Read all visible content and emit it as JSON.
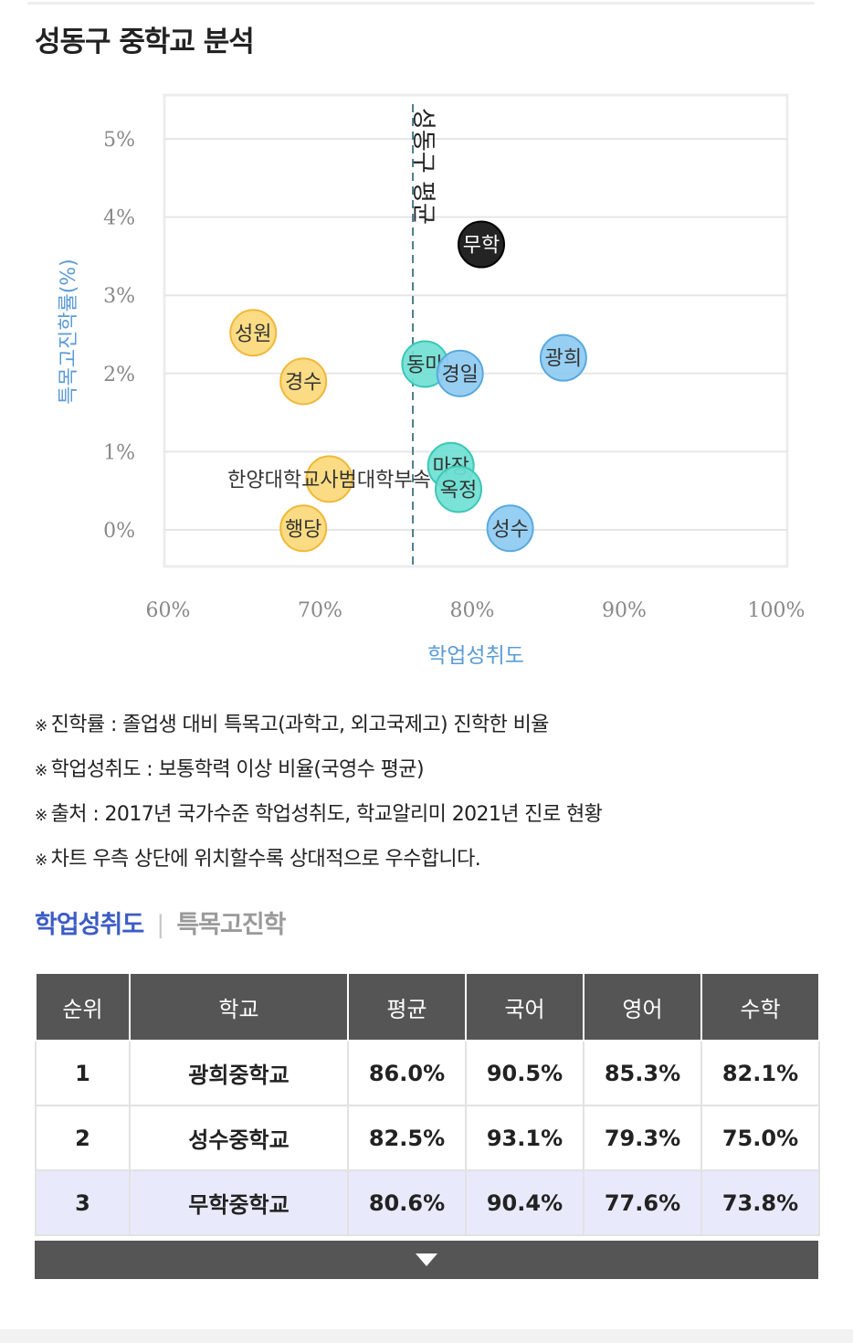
{
  "page_title": "성동구 중학교 분석",
  "chart_data": {
    "type": "scatter",
    "xlabel": "학업성취도",
    "ylabel": "특목고진학률(%)",
    "x_ticks": [
      "60%",
      "70%",
      "80%",
      "90%",
      "100%"
    ],
    "y_ticks": [
      "0%",
      "1%",
      "2%",
      "3%",
      "4%",
      "5%"
    ],
    "xlim": [
      60,
      100
    ],
    "ylim": [
      -0.5,
      5.5
    ],
    "grid": true,
    "reference_line": {
      "x": 76.1,
      "label": "성동구 평균"
    },
    "colors": {
      "yellow": "#fbd97a",
      "teal": "#6fdfd2",
      "blue": "#8ecbf2",
      "black": "#111111",
      "axis_label": "#5b9bd5"
    },
    "points": [
      {
        "label": "무학",
        "x": 80.6,
        "y": 3.65,
        "group": "black"
      },
      {
        "label": "성원",
        "x": 65.6,
        "y": 2.52,
        "group": "yellow"
      },
      {
        "label": "경수",
        "x": 68.9,
        "y": 1.9,
        "group": "yellow"
      },
      {
        "label": "광희",
        "x": 86.0,
        "y": 2.2,
        "group": "blue"
      },
      {
        "label": "동마",
        "x": 76.9,
        "y": 2.12,
        "group": "teal"
      },
      {
        "label": "경일",
        "x": 79.2,
        "y": 2.0,
        "group": "blue"
      },
      {
        "label": "마장",
        "x": 78.6,
        "y": 0.82,
        "group": "teal"
      },
      {
        "label": "옥정",
        "x": 79.1,
        "y": 0.52,
        "group": "teal"
      },
      {
        "label": "한양대학교사범대학부속",
        "x": 70.6,
        "y": 0.65,
        "group": "yellow"
      },
      {
        "label": "행당",
        "x": 68.9,
        "y": 0.02,
        "group": "yellow"
      },
      {
        "label": "성수",
        "x": 82.5,
        "y": 0.02,
        "group": "blue"
      }
    ]
  },
  "notes": [
    {
      "mark": "※",
      "text": "진학률 : 졸업생 대비 특목고(과학고, 외고국제고) 진학한 비율"
    },
    {
      "mark": "※",
      "text": "학업성취도 : 보통학력 이상 비율(국영수 평균)"
    },
    {
      "mark": "※",
      "text": "출처 : 2017년 국가수준 학업성취도, 학교알리미 2021년 진로 현황"
    },
    {
      "mark": "※",
      "text": "차트 우측 상단에 위치할수록 상대적으로 우수합니다."
    }
  ],
  "tabs": {
    "active": "학업성취도",
    "separator": "|",
    "inactive": "특목고진학"
  },
  "table": {
    "headers": [
      "순위",
      "학교",
      "평균",
      "국어",
      "영어",
      "수학"
    ],
    "rows": [
      [
        "1",
        "광희중학교",
        "86.0%",
        "90.5%",
        "85.3%",
        "82.1%"
      ],
      [
        "2",
        "성수중학교",
        "82.5%",
        "93.1%",
        "79.3%",
        "75.0%"
      ],
      [
        "3",
        "무학중학교",
        "80.6%",
        "90.4%",
        "77.6%",
        "73.8%"
      ]
    ],
    "highlight_row": 2
  },
  "expand_icon": "triangle-down-icon"
}
